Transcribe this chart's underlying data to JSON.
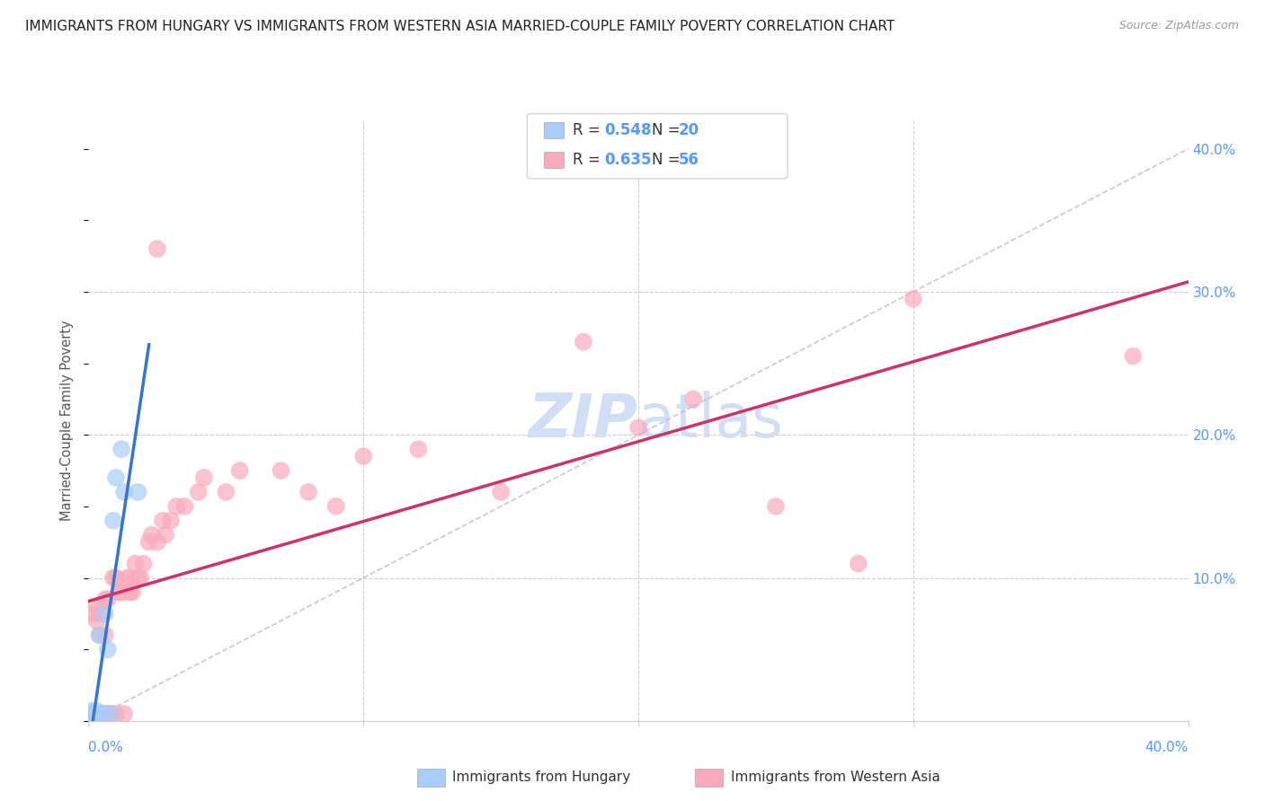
{
  "title": "IMMIGRANTS FROM HUNGARY VS IMMIGRANTS FROM WESTERN ASIA MARRIED-COUPLE FAMILY POVERTY CORRELATION CHART",
  "source": "Source: ZipAtlas.com",
  "ylabel": "Married-Couple Family Poverty",
  "legend_xlabel1": "Immigrants from Hungary",
  "legend_xlabel2": "Immigrants from Western Asia",
  "R_hungary": 0.548,
  "N_hungary": 20,
  "R_western_asia": 0.635,
  "N_western_asia": 56,
  "color_hungary": "#aaccf8",
  "color_western_asia": "#f8aabb",
  "line_color_hungary": "#3377cc",
  "line_color_western_asia": "#cc3366",
  "dashed_line_color": "#bbbbcc",
  "title_color": "#222222",
  "axis_label_color": "#5599ff",
  "watermark_color": "#d0dff5",
  "background_color": "#ffffff",
  "xlim": [
    0.0,
    0.4
  ],
  "ylim": [
    0.0,
    0.42
  ],
  "hungary_x": [
    0.001,
    0.001,
    0.001,
    0.002,
    0.002,
    0.002,
    0.003,
    0.003,
    0.003,
    0.004,
    0.004,
    0.005,
    0.006,
    0.007,
    0.008,
    0.009,
    0.01,
    0.012,
    0.013,
    0.018
  ],
  "hungary_y": [
    0.0,
    0.005,
    0.007,
    0.003,
    0.005,
    0.006,
    0.003,
    0.005,
    0.007,
    0.005,
    0.06,
    0.005,
    0.075,
    0.05,
    0.005,
    0.14,
    0.17,
    0.19,
    0.16,
    0.16
  ],
  "western_asia_x": [
    0.001,
    0.002,
    0.002,
    0.003,
    0.003,
    0.003,
    0.004,
    0.004,
    0.005,
    0.005,
    0.006,
    0.006,
    0.006,
    0.007,
    0.007,
    0.008,
    0.009,
    0.01,
    0.01,
    0.011,
    0.012,
    0.013,
    0.014,
    0.015,
    0.015,
    0.016,
    0.017,
    0.018,
    0.019,
    0.02,
    0.022,
    0.023,
    0.025,
    0.025,
    0.027,
    0.028,
    0.03,
    0.032,
    0.035,
    0.04,
    0.042,
    0.05,
    0.055,
    0.07,
    0.08,
    0.09,
    0.1,
    0.12,
    0.15,
    0.18,
    0.2,
    0.22,
    0.25,
    0.28,
    0.3,
    0.38
  ],
  "western_asia_y": [
    0.005,
    0.005,
    0.075,
    0.005,
    0.07,
    0.08,
    0.005,
    0.06,
    0.005,
    0.075,
    0.005,
    0.06,
    0.085,
    0.005,
    0.085,
    0.005,
    0.1,
    0.005,
    0.1,
    0.09,
    0.09,
    0.005,
    0.1,
    0.09,
    0.1,
    0.09,
    0.11,
    0.1,
    0.1,
    0.11,
    0.125,
    0.13,
    0.125,
    0.33,
    0.14,
    0.13,
    0.14,
    0.15,
    0.15,
    0.16,
    0.17,
    0.16,
    0.175,
    0.175,
    0.16,
    0.15,
    0.185,
    0.19,
    0.16,
    0.265,
    0.205,
    0.225,
    0.15,
    0.11,
    0.295,
    0.255
  ]
}
